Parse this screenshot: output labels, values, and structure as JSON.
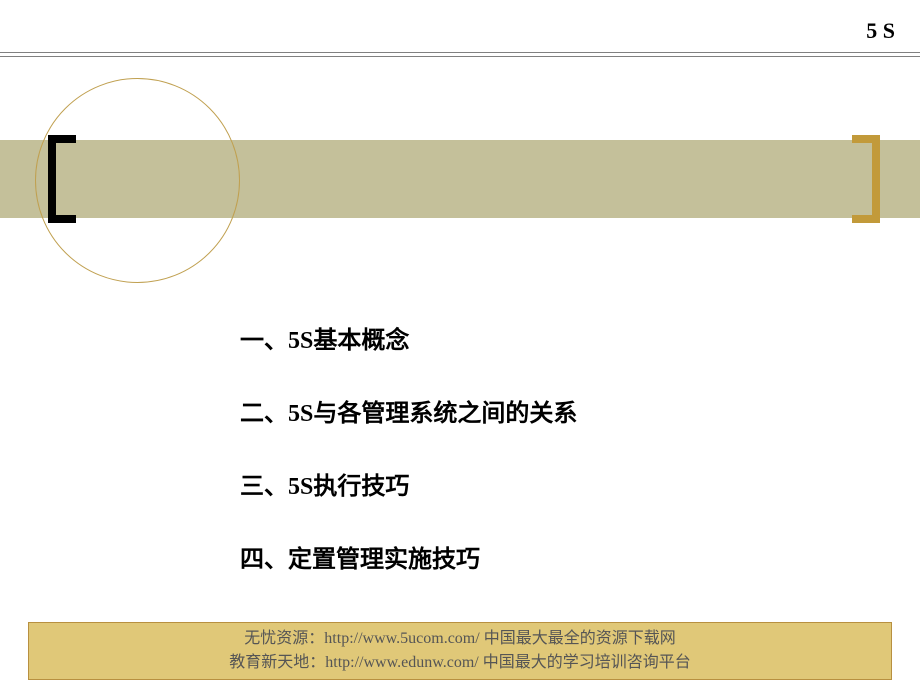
{
  "header": {
    "label": "5 S"
  },
  "colors": {
    "banner_bg": "#c4c09a",
    "circle_border": "#c0a050",
    "left_bracket": "#000000",
    "right_bracket": "#c29a3a",
    "footer_bg": "#e0c878",
    "footer_border": "#b89040",
    "footer_text": "#555555",
    "divider": "#808080",
    "body_text": "#000000"
  },
  "content": {
    "items": [
      "一、5S基本概念",
      "二、5S与各管理系统之间的关系",
      "三、5S执行技巧",
      "四、定置管理实施技巧"
    ]
  },
  "footer": {
    "line1": "无忧资源：http://www.5ucom.com/ 中国最大最全的资源下载网",
    "line2": "教育新天地：http://www.edunw.com/ 中国最大的学习培训咨询平台"
  }
}
